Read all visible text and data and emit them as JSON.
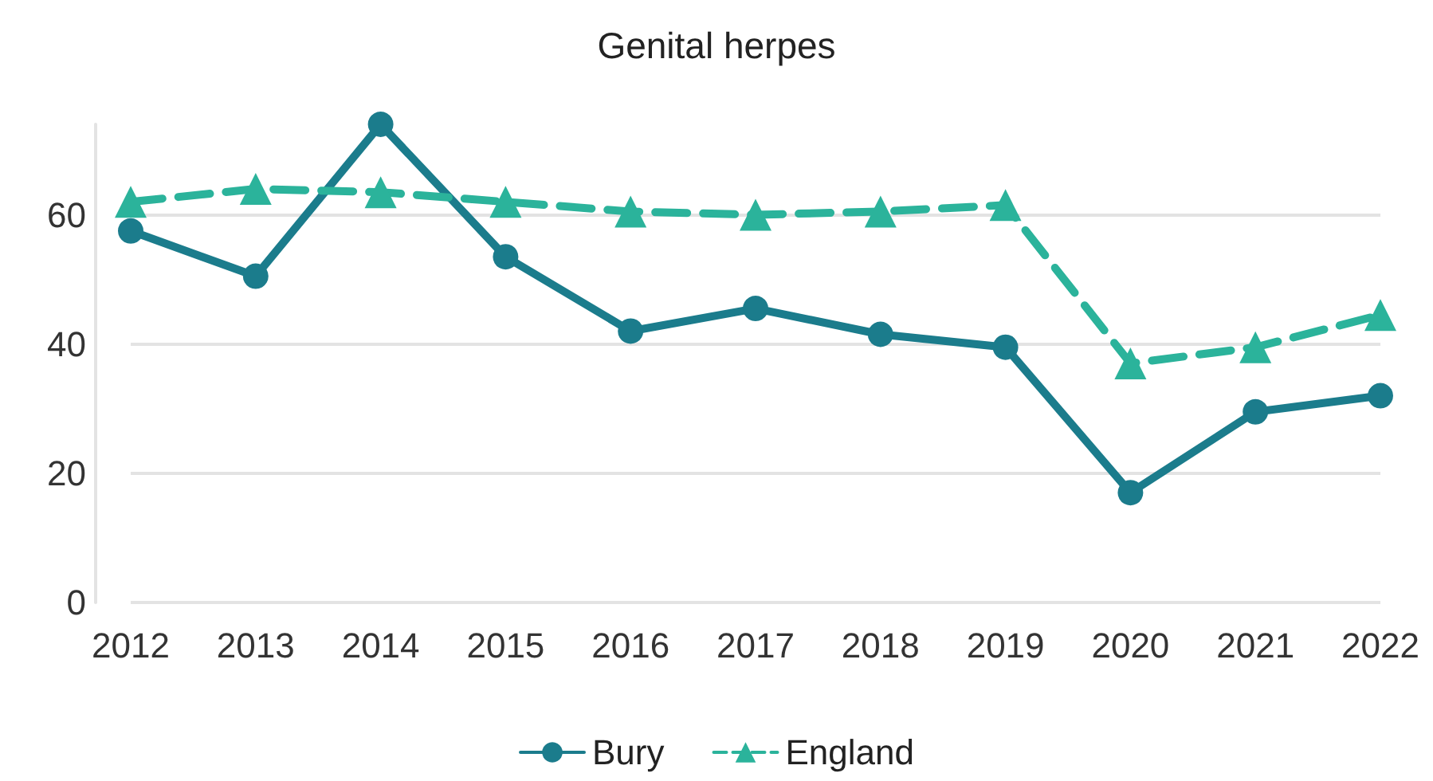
{
  "chart_data": {
    "type": "line",
    "title": "Genital herpes",
    "categories": [
      "2012",
      "2013",
      "2014",
      "2015",
      "2016",
      "2017",
      "2018",
      "2019",
      "2020",
      "2021",
      "2022"
    ],
    "series": [
      {
        "name": "Bury",
        "color": "#1b7c8c",
        "marker": "circle",
        "line_style": "solid",
        "values": [
          57.5,
          50.5,
          74,
          53.5,
          42,
          45.5,
          41.5,
          39.5,
          17,
          29.5,
          32
        ]
      },
      {
        "name": "England",
        "color": "#2bb39b",
        "marker": "triangle",
        "line_style": "dashed",
        "values": [
          62,
          64,
          63.5,
          62,
          60.5,
          60,
          60.5,
          61.5,
          37,
          39.5,
          44.5
        ]
      }
    ],
    "ylim": [
      0,
      74
    ],
    "yticks": [
      0,
      20,
      40,
      60
    ],
    "grid": "y",
    "legend": "bottom"
  }
}
